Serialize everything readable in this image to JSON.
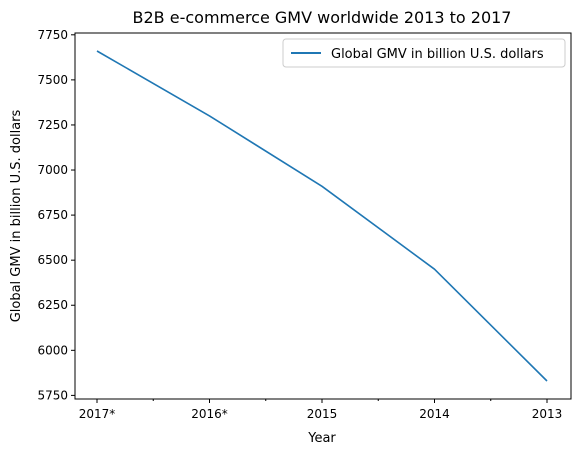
{
  "chart_data": {
    "type": "line",
    "title": "B2B e-commerce GMV worldwide 2013 to 2017",
    "xlabel": "Year",
    "ylabel": "Global GMV in billion U.S. dollars",
    "categories": [
      "2017*",
      "2016*",
      "2015",
      "2014",
      "2013"
    ],
    "series": [
      {
        "name": "Global GMV in billion U.S. dollars",
        "values": [
          7660,
          7300,
          6910,
          6450,
          5830
        ],
        "color": "#1f77b4"
      }
    ],
    "ylim": [
      5730,
      7760
    ],
    "yticks": [
      5750,
      6000,
      6250,
      6500,
      6750,
      7000,
      7250,
      7500,
      7750
    ],
    "minor_x_ticks": true,
    "grid": false,
    "legend": "top-right"
  }
}
